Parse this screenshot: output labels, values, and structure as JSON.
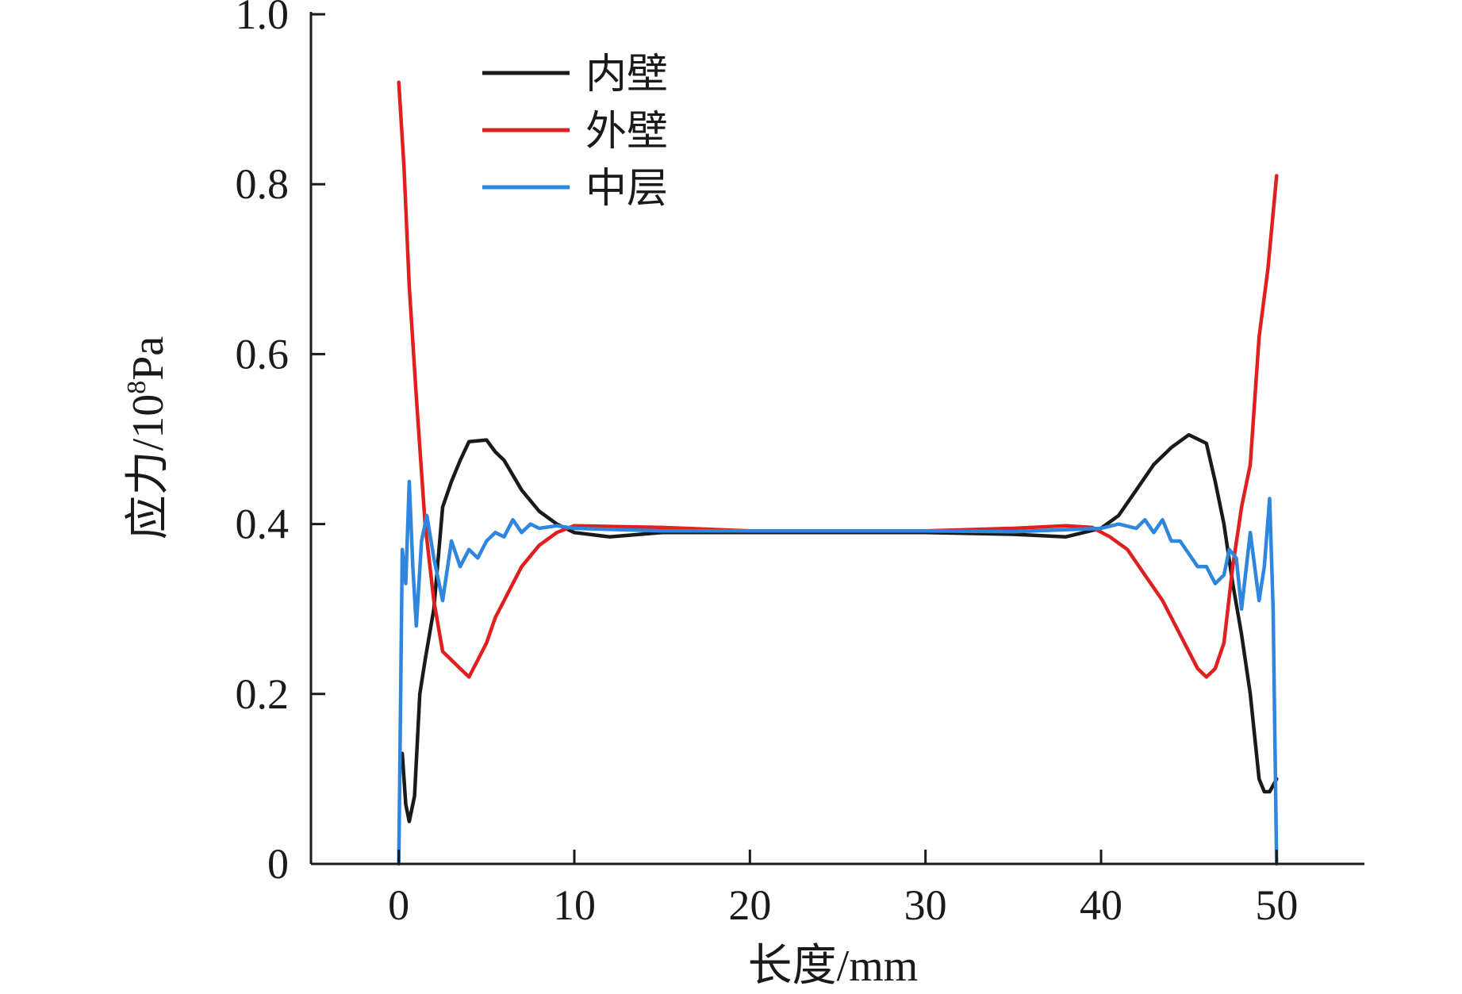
{
  "chart_data": {
    "type": "line",
    "title": "",
    "xlabel": "长度/mm",
    "ylabel_main": "应力/10",
    "ylabel_sup": "8",
    "ylabel_unit": "Pa",
    "xlim": [
      -5,
      55
    ],
    "ylim": [
      0,
      1.0
    ],
    "xticks": [
      0,
      10,
      20,
      30,
      40,
      50
    ],
    "xtick_labels": [
      "0",
      "10",
      "20",
      "30",
      "40",
      "50"
    ],
    "yticks": [
      0,
      0.2,
      0.4,
      0.6,
      0.8,
      1.0
    ],
    "ytick_labels": [
      "0",
      "0.2",
      "0.4",
      "0.6",
      "0.8",
      "1.0"
    ],
    "grid": false,
    "legend_position": "top-left",
    "series": [
      {
        "name": "内壁",
        "color": "#1a1a1a",
        "x": [
          0.2,
          0.4,
          0.6,
          0.9,
          1.2,
          1.5,
          2.0,
          2.5,
          3.0,
          3.5,
          4.0,
          5.0,
          5.5,
          6.0,
          7.0,
          8.0,
          9.0,
          10.0,
          12.0,
          15.0,
          20.0,
          25.0,
          30.0,
          35.0,
          38.0,
          40.0,
          41.0,
          42.0,
          43.0,
          44.0,
          45.0,
          46.0,
          46.5,
          47.0,
          47.5,
          48.0,
          48.5,
          49.0,
          49.3,
          49.6,
          50.0
        ],
        "y": [
          0.13,
          0.07,
          0.05,
          0.08,
          0.2,
          0.24,
          0.3,
          0.42,
          0.45,
          0.475,
          0.497,
          0.499,
          0.485,
          0.475,
          0.44,
          0.415,
          0.4,
          0.39,
          0.385,
          0.39,
          0.39,
          0.39,
          0.39,
          0.388,
          0.385,
          0.395,
          0.41,
          0.44,
          0.47,
          0.49,
          0.505,
          0.495,
          0.45,
          0.4,
          0.33,
          0.27,
          0.2,
          0.1,
          0.085,
          0.085,
          0.1
        ]
      },
      {
        "name": "外壁",
        "color": "#e0201e",
        "x": [
          0.0,
          0.3,
          0.6,
          1.0,
          1.5,
          2.0,
          2.5,
          3.0,
          3.5,
          4.0,
          4.5,
          5.0,
          5.5,
          6.0,
          6.5,
          7.0,
          8.0,
          9.0,
          10.0,
          15.0,
          20.0,
          25.0,
          30.0,
          35.0,
          38.0,
          39.5,
          40.5,
          41.5,
          42.5,
          43.5,
          44.5,
          45.5,
          46.0,
          46.5,
          47.0,
          47.5,
          48.0,
          48.5,
          49.0,
          49.5,
          50.0
        ],
        "y": [
          0.92,
          0.82,
          0.68,
          0.55,
          0.4,
          0.31,
          0.25,
          0.24,
          0.23,
          0.22,
          0.24,
          0.26,
          0.29,
          0.31,
          0.33,
          0.35,
          0.375,
          0.39,
          0.398,
          0.396,
          0.392,
          0.392,
          0.392,
          0.395,
          0.398,
          0.396,
          0.385,
          0.37,
          0.34,
          0.31,
          0.27,
          0.23,
          0.22,
          0.23,
          0.26,
          0.35,
          0.42,
          0.47,
          0.62,
          0.7,
          0.81
        ]
      },
      {
        "name": "中层",
        "color": "#2e86de",
        "x": [
          0.0,
          0.2,
          0.4,
          0.6,
          0.8,
          1.0,
          1.3,
          1.6,
          2.0,
          2.5,
          3.0,
          3.5,
          4.0,
          4.5,
          5.0,
          5.5,
          6.0,
          6.5,
          7.0,
          7.5,
          8.0,
          9.0,
          10.0,
          15.0,
          20.0,
          25.0,
          30.0,
          35.0,
          40.0,
          41.0,
          42.0,
          42.5,
          43.0,
          43.5,
          44.0,
          44.5,
          45.0,
          45.5,
          46.0,
          46.5,
          47.0,
          47.3,
          47.7,
          48.0,
          48.5,
          49.0,
          49.3,
          49.6,
          49.8,
          50.0
        ],
        "y": [
          0.0,
          0.37,
          0.33,
          0.45,
          0.35,
          0.28,
          0.38,
          0.41,
          0.36,
          0.31,
          0.38,
          0.35,
          0.37,
          0.36,
          0.38,
          0.39,
          0.385,
          0.405,
          0.39,
          0.4,
          0.395,
          0.398,
          0.395,
          0.392,
          0.392,
          0.392,
          0.392,
          0.391,
          0.395,
          0.4,
          0.395,
          0.405,
          0.39,
          0.405,
          0.38,
          0.38,
          0.365,
          0.35,
          0.35,
          0.33,
          0.34,
          0.37,
          0.36,
          0.3,
          0.39,
          0.31,
          0.35,
          0.43,
          0.3,
          0.0
        ]
      }
    ]
  }
}
